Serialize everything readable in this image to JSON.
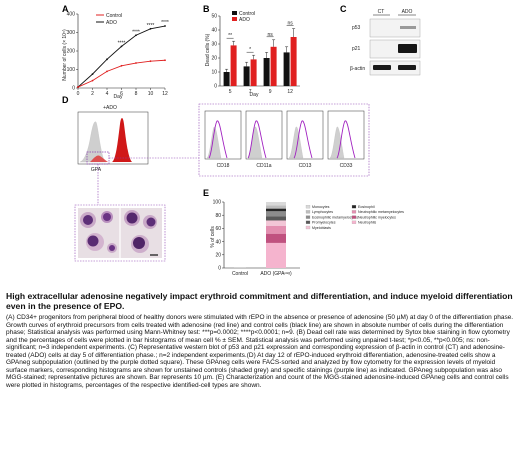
{
  "panels": {
    "A": {
      "label": "A",
      "chart_data": {
        "type": "line",
        "xlabel": "Day",
        "ylabel": "Number of cells (× 10⁵)",
        "xlim": [
          0,
          12
        ],
        "ylim": [
          0,
          400
        ],
        "xticks": [
          "0",
          "2",
          "4",
          "6",
          "8",
          "10",
          "12"
        ],
        "yticks": [
          "0",
          "100",
          "200",
          "300",
          "400"
        ],
        "series": [
          {
            "name": "Control",
            "color": "#111111",
            "x": [
              0,
              2,
              4,
              6,
              8,
              10,
              12
            ],
            "y": [
              5,
              75,
              155,
              225,
              285,
              320,
              335
            ]
          },
          {
            "name": "ADO",
            "color": "#e02020",
            "x": [
              0,
              2,
              4,
              6,
              8,
              10,
              12
            ],
            "y": [
              5,
              40,
              90,
              120,
              135,
              145,
              150
            ]
          }
        ],
        "significance": [
          {
            "x": 6,
            "text": "****"
          },
          {
            "x": 8,
            "text": "****"
          },
          {
            "x": 10,
            "text": "****"
          },
          {
            "x": 12,
            "text": "****"
          }
        ],
        "legend": [
          "Control",
          "ADO"
        ]
      }
    },
    "B": {
      "label": "B",
      "chart_data": {
        "type": "bar",
        "xlabel": "Day",
        "ylabel": "Dead cells (%)",
        "categories": [
          "5",
          "7",
          "9",
          "12"
        ],
        "ylim": [
          0,
          50
        ],
        "yticks": [
          "0",
          "10",
          "20",
          "30",
          "40",
          "50"
        ],
        "series": [
          {
            "name": "Control",
            "color": "#111111",
            "values": [
              10,
              14,
              20,
              24
            ],
            "errors": [
              2,
              3,
              4,
              4
            ]
          },
          {
            "name": "ADO",
            "color": "#e02020",
            "values": [
              29,
              19,
              28,
              35
            ],
            "errors": [
              3,
              3,
              5,
              6
            ]
          }
        ],
        "significance": [
          "**",
          "*",
          "ns",
          "ns"
        ],
        "legend": [
          "Control",
          "ADO"
        ]
      }
    },
    "C": {
      "label": "C",
      "lanes": [
        "CT",
        "ADO"
      ],
      "rows": [
        "p53",
        "p21",
        "β-actin"
      ]
    },
    "D": {
      "label": "D",
      "main_title": "+ADO",
      "main_xlabel": "GPA",
      "sub_histograms": [
        "CD18",
        "CD11a",
        "CD13",
        "CD33"
      ]
    },
    "E": {
      "label": "E",
      "ylabel": "% of cells",
      "categories": [
        "Control",
        "ADO (GPAⁿᵉᵍ)"
      ],
      "yticks": [
        "0",
        "20",
        "40",
        "60",
        "80",
        "100"
      ],
      "legend": [
        {
          "name": "Monocytes",
          "color": "#d9d9d9"
        },
        {
          "name": "Lymphocytes",
          "color": "#bdbdbd"
        },
        {
          "name": "Eosinophilic metamyelocytes",
          "color": "#8c8c8c"
        },
        {
          "name": "Promyelocytes",
          "color": "#595959"
        },
        {
          "name": "Myeloblasts",
          "color": "#f2c6d6"
        },
        {
          "name": "Eosinophil",
          "color": "#262626"
        },
        {
          "name": "Neutrophilic metamyelocytes",
          "color": "#e38fb0"
        },
        {
          "name": "Neutrophilic myelocytes",
          "color": "#c0517f"
        },
        {
          "name": "Neutrophils",
          "color": "#f5b4ce"
        }
      ],
      "stack": [
        {
          "name": "Neutrophils",
          "color": "#f5b4ce",
          "value": 38
        },
        {
          "name": "Neutrophilic myelocytes",
          "color": "#c0517f",
          "value": 14
        },
        {
          "name": "Neutrophilic metamyelocytes",
          "color": "#e38fb0",
          "value": 12
        },
        {
          "name": "Myeloblasts",
          "color": "#f2c6d6",
          "value": 8
        },
        {
          "name": "Promyelocytes",
          "color": "#595959",
          "value": 6
        },
        {
          "name": "Eosinophilic metamyelocytes",
          "color": "#8c8c8c",
          "value": 8
        },
        {
          "name": "Eosinophil",
          "color": "#262626",
          "value": 4
        },
        {
          "name": "Lymphocytes",
          "color": "#bdbdbd",
          "value": 5
        },
        {
          "name": "Monocytes",
          "color": "#d9d9d9",
          "value": 5
        }
      ]
    }
  },
  "caption": {
    "title": "High extracellular adenosine negatively impact erythroid commitment and differentiation, and induce myeloid differentiation even in the presence of EPO.",
    "body": "(A) CD34+ progenitors from peripheral blood of healthy donors were stimulated with rEPO in the absence or presence of adenosine (50 µM) at day 0 of the differentiation phase. Growth curves of erythroid precursors from cells treated with adenosine (red line) and control cells (black line) are shown in absolute number of cells during the differentiation phase; Statistical analysis was performed using Mann-Whitney test: ***p=0.0002; ****p<0.0001; n=9. (B) Dead cell rate was determined by Sytox blue staining in flow cytometry and the percentages of cells were plotted in bar histograms of mean cell % ± SEM. Statistical analysis was performed using unpaired t-test; *p<0.05, **p<0.005; ns: non-significant; n=3 independent experiments. (C) Representative western blot of p53 and p21 expression and corresponding expression of β-actin in control (CT) and adenosine-treated (ADO) cells at day 5 of differentiation phase.; n=2 independent experiments.(D) At day 12 of rEPO-induced erythroid differentiation, adenosine-treated cells show a GPAneg subpopulation (outlined by the purple dotted square). These GPAneg cells were FACS-sorted and analyzed by flow cytometry for the expression levels of myeloid surface markers, corresponding histograms are shown for unstained controls (shaded grey) and specific stainings (purple line) as indicated. GPAneg subpopulation was also MGG-stained; representative pictures are shown. Bar represents 10 µm. (E) Characterization and count of the MGG-stained adenosine-induced GPAneg cells and control cells were plotted in histograms, percentages of the respective identified-cell types are shown."
  }
}
